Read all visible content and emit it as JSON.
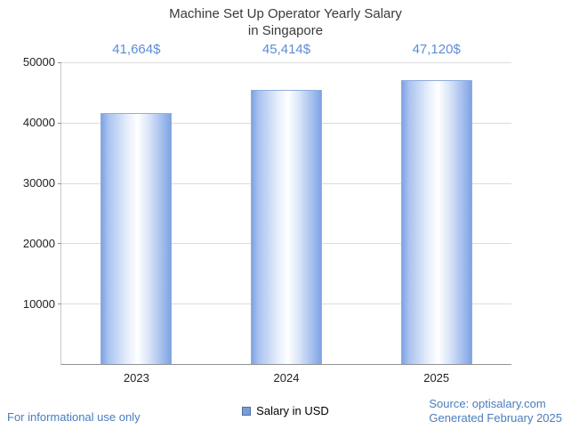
{
  "title": {
    "line1": "Machine Set Up Operator Yearly Salary",
    "line2": "in Singapore"
  },
  "chart_data": {
    "type": "bar",
    "categories": [
      "2023",
      "2024",
      "2025"
    ],
    "values": [
      41664,
      45414,
      47120
    ],
    "value_labels": [
      "41,664$",
      "45,414$",
      "47,120$"
    ],
    "series_name": "Salary in USD",
    "ylim": [
      0,
      50000
    ],
    "yticks": [
      "10000",
      "20000",
      "30000",
      "40000",
      "50000"
    ],
    "grid": true,
    "legend": {
      "label": "Salary in USD",
      "position": "bottom"
    },
    "colors": {
      "bar": "#7fa3e3",
      "value_label": "#5b8dd3",
      "footer_text": "#4a7dbe",
      "gridline": "#dcdcdc"
    }
  },
  "footer": {
    "left": "For informational use only",
    "source": "Source: optisalary.com",
    "generated": "Generated February 2025"
  }
}
